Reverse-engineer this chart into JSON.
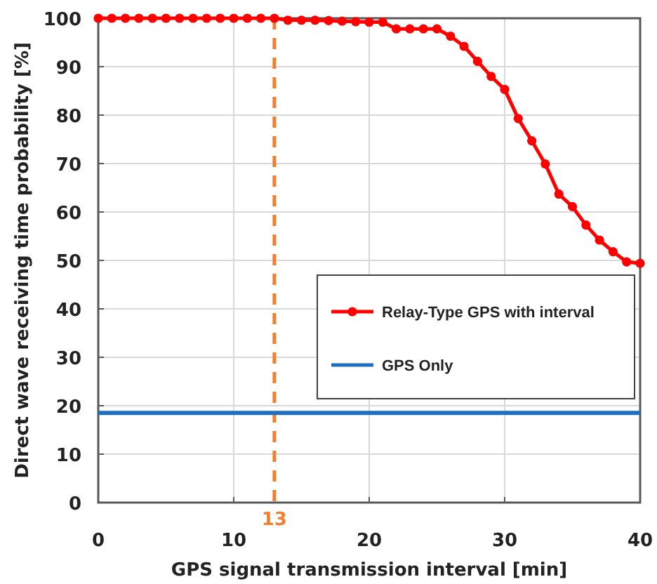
{
  "chart_data": {
    "type": "line",
    "xlabel": "GPS signal transmission interval [min]",
    "ylabel": "Direct wave receiving time probability [%]",
    "xlim": [
      0,
      40
    ],
    "ylim": [
      0,
      100
    ],
    "xticks": [
      0,
      10,
      20,
      30,
      40
    ],
    "yticks": [
      0,
      10,
      20,
      30,
      40,
      50,
      60,
      70,
      80,
      90,
      100
    ],
    "grid": true,
    "legend": "right",
    "series": [
      {
        "name": "Relay-Type GPS with interval",
        "color": "#ff0000",
        "marker": "circle",
        "x": [
          0,
          1,
          2,
          3,
          4,
          5,
          6,
          7,
          8,
          9,
          10,
          11,
          12,
          13,
          14,
          15,
          16,
          17,
          18,
          19,
          20,
          21,
          22,
          23,
          24,
          25,
          26,
          27,
          28,
          29,
          30,
          31,
          32,
          33,
          34,
          35,
          36,
          37,
          38,
          39,
          40
        ],
        "values": [
          100,
          100,
          100,
          100,
          100,
          100,
          100,
          100,
          100,
          100,
          100,
          100,
          100,
          100,
          99.6,
          99.6,
          99.6,
          99.5,
          99.4,
          99.3,
          99.2,
          99.2,
          97.8,
          97.8,
          97.8,
          97.8,
          96.3,
          94.2,
          91.1,
          88,
          85.3,
          79.3,
          74.7,
          69.9,
          63.7,
          61.1,
          57.3,
          54.2,
          51.8,
          49.7,
          49.4
        ]
      },
      {
        "name": "GPS Only",
        "color": "#1f6fc0",
        "marker": "none",
        "x": [
          0,
          40
        ],
        "values": [
          18.5,
          18.5
        ]
      }
    ],
    "ref_lines": [
      {
        "axis": "x",
        "value": 13,
        "label": "13",
        "color": "#f08030",
        "line_style": "dashed"
      }
    ]
  }
}
